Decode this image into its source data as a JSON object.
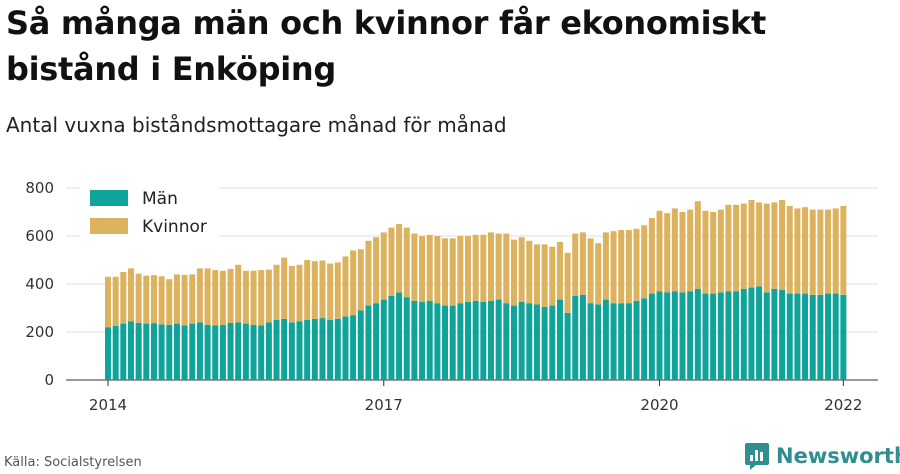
{
  "header": {
    "title": "Så många män och kvinnor får ekonomiskt bistånd i Enköping",
    "subtitle": "Antal vuxna biståndsmottagare månad för månad"
  },
  "footer": {
    "source": "Källa: Socialstyrelsen",
    "brand": "Newsworthy"
  },
  "colors": {
    "men": "#0fa39a",
    "women": "#dcb25f",
    "grid": "#dddddd",
    "brand": "#2f8e8f"
  },
  "chart_data": {
    "type": "bar",
    "stacked": true,
    "title": "Så många män och kvinnor får ekonomiskt bistånd i Enköping",
    "subtitle": "Antal vuxna biståndsmottagare månad för månad",
    "xlabel": "",
    "ylabel": "",
    "ylim": [
      0,
      800
    ],
    "yticks": [
      0,
      200,
      400,
      600,
      800
    ],
    "xticks": [
      {
        "label": "2014",
        "index": 0
      },
      {
        "label": "2017",
        "index": 36
      },
      {
        "label": "2020",
        "index": 72
      },
      {
        "label": "2022",
        "index": 96
      }
    ],
    "legend": {
      "position": "top-left",
      "entries": [
        "Män",
        "Kvinnor"
      ]
    },
    "start": "2014-01",
    "series": [
      {
        "name": "Män",
        "values": [
          220,
          225,
          235,
          245,
          238,
          235,
          237,
          232,
          230,
          235,
          228,
          235,
          240,
          230,
          228,
          230,
          238,
          240,
          235,
          230,
          228,
          240,
          250,
          255,
          240,
          245,
          250,
          255,
          258,
          250,
          255,
          265,
          270,
          290,
          310,
          320,
          335,
          350,
          365,
          345,
          330,
          325,
          330,
          320,
          310,
          310,
          320,
          325,
          330,
          325,
          330,
          335,
          320,
          310,
          325,
          320,
          315,
          305,
          310,
          335,
          280,
          350,
          355,
          320,
          315,
          335,
          320,
          320,
          320,
          330,
          340,
          360,
          370,
          365,
          370,
          365,
          370,
          380,
          360,
          360,
          365,
          370,
          370,
          380,
          385,
          390,
          365,
          380,
          375,
          360,
          360,
          360,
          355,
          355,
          360,
          360,
          355
        ]
      },
      {
        "name": "Kvinnor",
        "values": [
          210,
          205,
          215,
          220,
          205,
          200,
          200,
          200,
          190,
          205,
          210,
          205,
          225,
          235,
          230,
          225,
          225,
          240,
          220,
          225,
          230,
          220,
          230,
          255,
          235,
          235,
          250,
          240,
          240,
          235,
          235,
          250,
          270,
          255,
          270,
          275,
          280,
          285,
          285,
          290,
          280,
          275,
          275,
          280,
          280,
          280,
          280,
          275,
          275,
          280,
          285,
          275,
          290,
          275,
          270,
          260,
          250,
          260,
          245,
          240,
          250,
          260,
          260,
          270,
          255,
          280,
          300,
          305,
          305,
          300,
          305,
          315,
          335,
          330,
          345,
          335,
          340,
          365,
          345,
          340,
          345,
          360,
          360,
          355,
          365,
          350,
          370,
          360,
          375,
          365,
          355,
          360,
          355,
          355,
          350,
          355,
          370
        ]
      }
    ]
  }
}
